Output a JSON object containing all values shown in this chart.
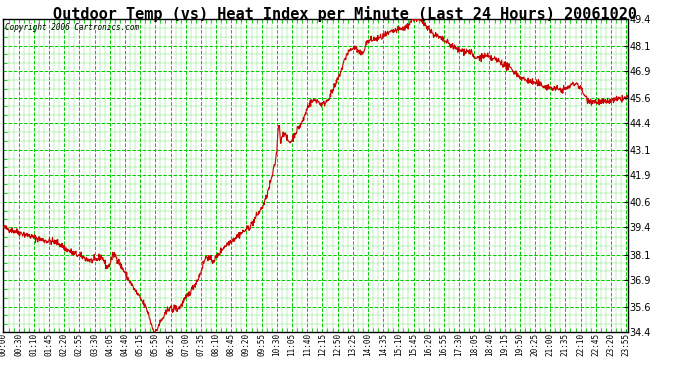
{
  "title": "Outdoor Temp (vs) Heat Index per Minute (Last 24 Hours) 20061020",
  "copyright": "Copyright 2006 Cartronics.com",
  "bg_color": "#ffffff",
  "plot_bg_color": "#ffffff",
  "grid_color": "#00cc00",
  "line_color": "#cc0000",
  "border_color": "#000000",
  "title_fontsize": 11,
  "yticks": [
    34.4,
    35.6,
    36.9,
    38.1,
    39.4,
    40.6,
    41.9,
    43.1,
    44.4,
    45.6,
    46.9,
    48.1,
    49.4
  ],
  "ymin": 34.4,
  "ymax": 49.4,
  "xtick_labels": [
    "00:00",
    "00:30",
    "01:10",
    "01:45",
    "02:20",
    "02:55",
    "03:30",
    "04:05",
    "04:40",
    "05:15",
    "05:50",
    "06:25",
    "07:00",
    "07:35",
    "08:10",
    "08:45",
    "09:20",
    "09:55",
    "10:30",
    "11:05",
    "11:40",
    "12:15",
    "12:50",
    "13:25",
    "14:00",
    "14:35",
    "15:10",
    "15:45",
    "16:20",
    "16:55",
    "17:30",
    "18:05",
    "18:40",
    "19:15",
    "19:50",
    "20:25",
    "21:00",
    "21:35",
    "22:10",
    "22:45",
    "23:20",
    "23:55"
  ],
  "curve_keypoints": [
    [
      0.0,
      39.4
    ],
    [
      0.5,
      39.2
    ],
    [
      1.0,
      39.0
    ],
    [
      1.5,
      38.8
    ],
    [
      2.0,
      38.7
    ],
    [
      2.5,
      38.3
    ],
    [
      3.0,
      38.0
    ],
    [
      3.5,
      37.8
    ],
    [
      3.75,
      38.0
    ],
    [
      4.0,
      37.5
    ],
    [
      4.25,
      38.1
    ],
    [
      4.5,
      37.6
    ],
    [
      5.0,
      36.5
    ],
    [
      5.5,
      35.5
    ],
    [
      5.833,
      34.4
    ],
    [
      6.0,
      34.8
    ],
    [
      6.25,
      35.3
    ],
    [
      6.417,
      35.6
    ],
    [
      6.5,
      35.4
    ],
    [
      6.583,
      35.6
    ],
    [
      6.667,
      35.5
    ],
    [
      7.0,
      36.0
    ],
    [
      7.5,
      37.0
    ],
    [
      7.833,
      38.0
    ],
    [
      8.0,
      37.8
    ],
    [
      8.5,
      38.5
    ],
    [
      9.0,
      39.0
    ],
    [
      9.5,
      39.5
    ],
    [
      9.75,
      40.0
    ],
    [
      10.0,
      40.5
    ],
    [
      10.25,
      41.5
    ],
    [
      10.5,
      43.0
    ],
    [
      10.583,
      44.4
    ],
    [
      10.667,
      43.5
    ],
    [
      10.75,
      44.0
    ],
    [
      10.833,
      43.8
    ],
    [
      11.0,
      43.5
    ],
    [
      11.25,
      44.0
    ],
    [
      11.5,
      44.5
    ],
    [
      11.75,
      45.3
    ],
    [
      12.0,
      45.5
    ],
    [
      12.25,
      45.3
    ],
    [
      12.5,
      45.6
    ],
    [
      12.75,
      46.2
    ],
    [
      13.0,
      47.0
    ],
    [
      13.25,
      47.8
    ],
    [
      13.5,
      48.0
    ],
    [
      13.75,
      47.7
    ],
    [
      14.0,
      48.3
    ],
    [
      14.5,
      48.5
    ],
    [
      15.0,
      48.8
    ],
    [
      15.5,
      49.0
    ],
    [
      15.75,
      49.4
    ],
    [
      16.0,
      49.3
    ],
    [
      16.25,
      49.1
    ],
    [
      16.5,
      48.7
    ],
    [
      16.75,
      48.5
    ],
    [
      17.0,
      48.3
    ],
    [
      17.25,
      48.1
    ],
    [
      17.5,
      47.9
    ],
    [
      18.0,
      47.8
    ],
    [
      18.083,
      47.5
    ],
    [
      18.5,
      47.6
    ],
    [
      18.75,
      47.5
    ],
    [
      19.0,
      47.4
    ],
    [
      19.25,
      47.2
    ],
    [
      19.5,
      47.0
    ],
    [
      20.0,
      46.5
    ],
    [
      20.5,
      46.3
    ],
    [
      21.0,
      46.1
    ],
    [
      21.5,
      46.0
    ],
    [
      22.0,
      46.3
    ],
    [
      22.5,
      45.5
    ],
    [
      23.0,
      45.4
    ],
    [
      23.5,
      45.5
    ],
    [
      23.917,
      45.6
    ]
  ]
}
